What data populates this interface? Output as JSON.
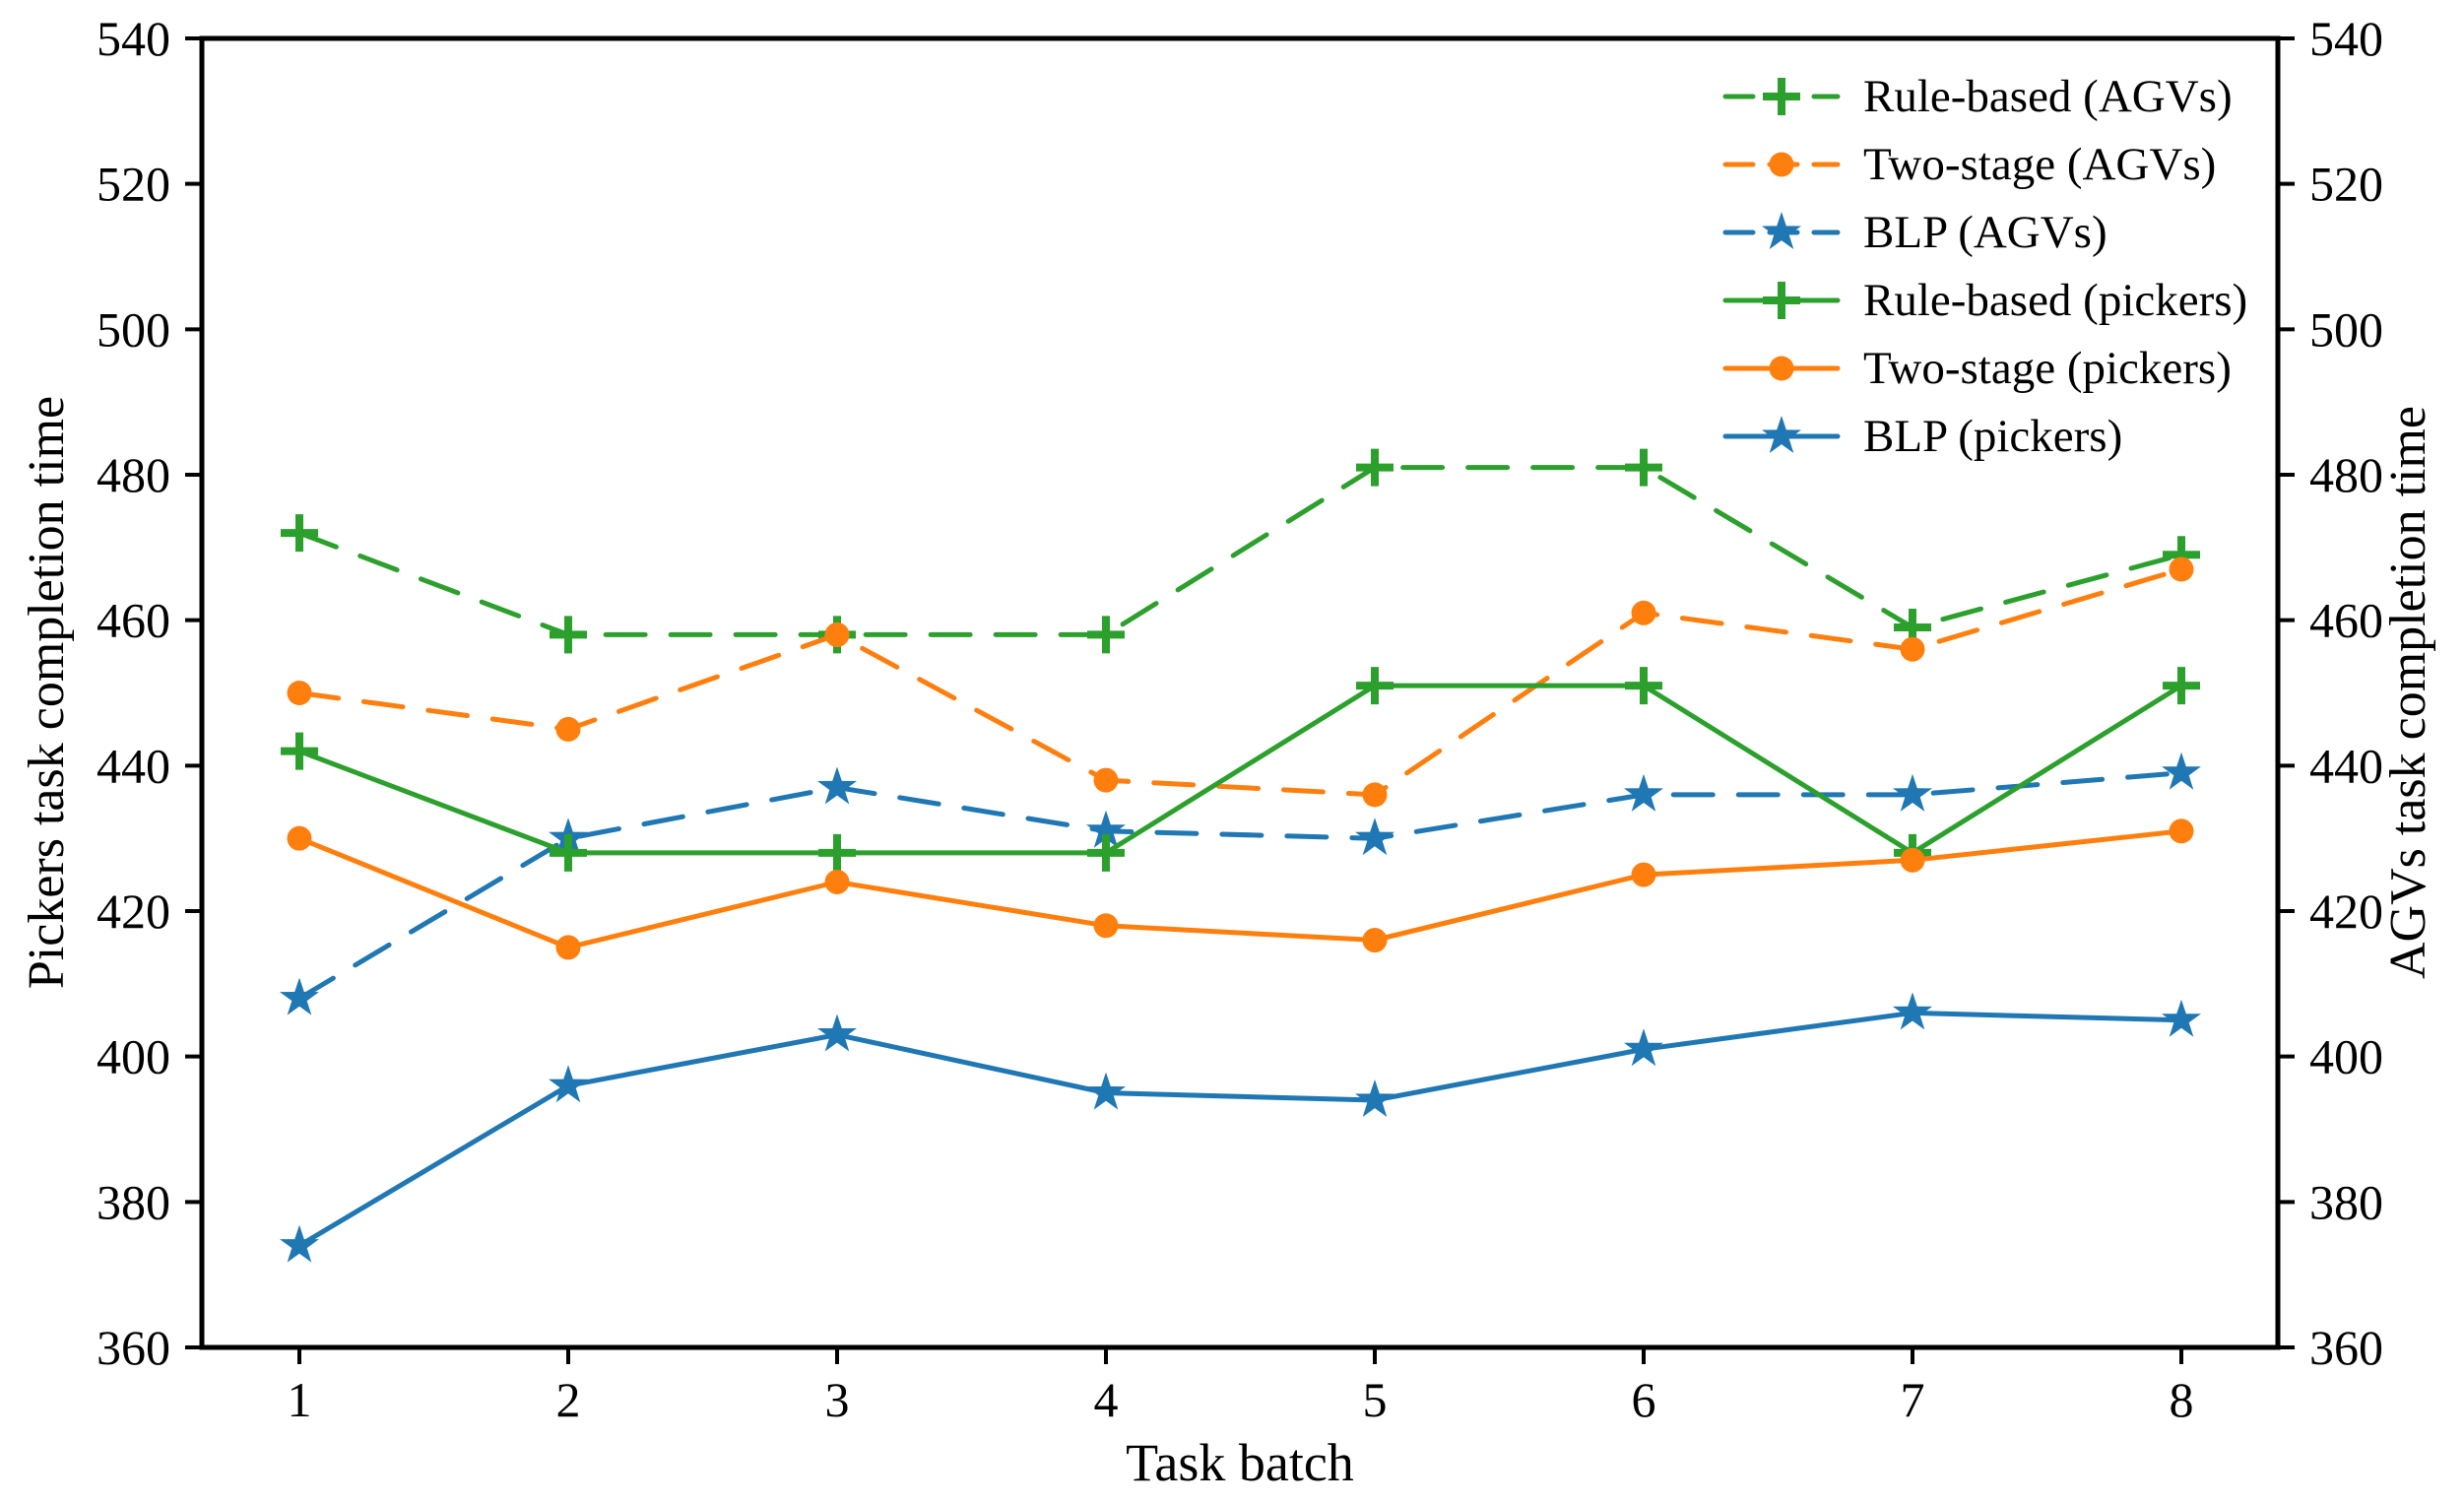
{
  "chart_data": {
    "type": "line",
    "title": "",
    "xlabel": "Task batch",
    "ylabel_left": "Pickers task completion time",
    "ylabel_right": "AGVs task completion time",
    "x": [
      1,
      2,
      3,
      4,
      5,
      6,
      7,
      8
    ],
    "xtick_labels": [
      "1",
      "2",
      "3",
      "4",
      "5",
      "6",
      "7",
      "8"
    ],
    "ylim": [
      360,
      540
    ],
    "yticks": [
      360,
      380,
      400,
      420,
      440,
      460,
      480,
      500,
      520,
      540
    ],
    "grid": false,
    "legend_position": "upper right",
    "axis_color": "#000000",
    "series": [
      {
        "name": "Rule-based (AGVs)",
        "color": "#2ca02c",
        "linestyle": "dashed",
        "marker": "plus",
        "axis": "right",
        "values": [
          472,
          458,
          458,
          458,
          481,
          481,
          459,
          469
        ]
      },
      {
        "name": "Two-stage (AGVs)",
        "color": "#ff7f0e",
        "linestyle": "dashed",
        "marker": "circle",
        "axis": "right",
        "values": [
          450,
          445,
          458,
          438,
          436,
          461,
          456,
          467
        ]
      },
      {
        "name": "BLP (AGVs)",
        "color": "#1f77b4",
        "linestyle": "dashed",
        "marker": "star",
        "axis": "right",
        "values": [
          408,
          430,
          437,
          431,
          430,
          436,
          436,
          439
        ]
      },
      {
        "name": "Rule-based (pickers)",
        "color": "#2ca02c",
        "linestyle": "solid",
        "marker": "plus",
        "axis": "left",
        "values": [
          442,
          428,
          428,
          428,
          451,
          451,
          428,
          451
        ]
      },
      {
        "name": "Two-stage (pickers)",
        "color": "#ff7f0e",
        "linestyle": "solid",
        "marker": "circle",
        "axis": "left",
        "values": [
          430,
          415,
          424,
          418,
          416,
          425,
          427,
          431
        ]
      },
      {
        "name": "BLP (pickers)",
        "color": "#1f77b4",
        "linestyle": "solid",
        "marker": "star",
        "axis": "left",
        "values": [
          374,
          396,
          403,
          395,
          394,
          401,
          406,
          405
        ]
      }
    ]
  }
}
